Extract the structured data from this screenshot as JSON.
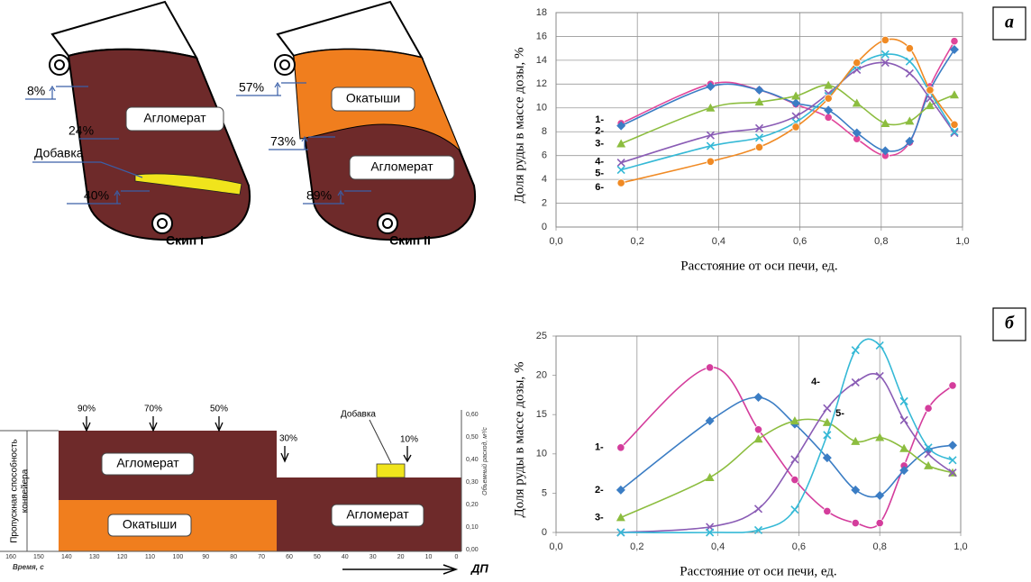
{
  "diagrams": {
    "skip_1": {
      "title": "Скип I",
      "levels": [
        "8%",
        "24%",
        "40%"
      ],
      "layer": "Агломерат",
      "additive": "Добавка"
    },
    "skip_2": {
      "title": "Скип II",
      "levels": [
        "57%",
        "73%",
        "89%"
      ],
      "layers": [
        "Окатыши",
        "Агломерат"
      ]
    },
    "conveyor": {
      "y_label_lines": [
        "Пропускная способность",
        "конвейера"
      ],
      "x_label": "Время, с",
      "y2_label": "Объемный расход, м³/с",
      "x_ticks": [
        "160",
        "150",
        "140",
        "130",
        "120",
        "110",
        "100",
        "90",
        "80",
        "70",
        "60",
        "50",
        "40",
        "30",
        "20",
        "10",
        "0"
      ],
      "y2_ticks": [
        "0,00",
        "0,10",
        "0,20",
        "0,30",
        "0,40",
        "0,50",
        "0,60"
      ],
      "markers": [
        "90%",
        "70%",
        "50%",
        "30%"
      ],
      "additive": "Добавка",
      "additive_share": "10%",
      "layers": [
        "Агломерат",
        "Окатыши",
        "Агломерат"
      ],
      "direction": "ДП"
    }
  },
  "chart_data": [
    {
      "type": "line",
      "panel": "а",
      "x_label": "Расстояние от оси печи, ед.",
      "y_label": "Доля руды в массе дозы, %",
      "xlim": [
        0,
        1
      ],
      "ylim": [
        0,
        18
      ],
      "grid": "both",
      "xticks": [
        {
          "value": 0,
          "label": "0,0"
        },
        {
          "value": 0.2,
          "label": "0,2"
        },
        {
          "value": 0.4,
          "label": "0,4"
        },
        {
          "value": 0.6,
          "label": "0,6"
        },
        {
          "value": 0.8,
          "label": "0,8"
        },
        {
          "value": 1,
          "label": "1,0"
        }
      ],
      "yticks": [
        0,
        2,
        4,
        6,
        8,
        10,
        12,
        14,
        16,
        18
      ],
      "x": [
        0.16,
        0.38,
        0.5,
        0.59,
        0.67,
        0.74,
        0.81,
        0.87,
        0.92,
        0.98
      ],
      "series": [
        {
          "name": "1-",
          "color": "#e0459a",
          "marker": "circle",
          "values": [
            8.7,
            12.0,
            11.5,
            10.3,
            9.2,
            7.4,
            6.0,
            7.1,
            11.8,
            15.6
          ]
        },
        {
          "name": "2-",
          "color": "#3b7dc4",
          "marker": "diamond",
          "values": [
            8.5,
            11.8,
            11.5,
            10.4,
            9.8,
            7.9,
            6.4,
            7.2,
            11.5,
            14.9
          ]
        },
        {
          "name": "3-",
          "color": "#8cbd3f",
          "marker": "triangle",
          "values": [
            7.0,
            10.0,
            10.5,
            11.0,
            11.9,
            10.4,
            8.7,
            8.9,
            10.2,
            11.1
          ]
        },
        {
          "name": "4-",
          "color": "#8a5cb5",
          "marker": "x",
          "values": [
            5.4,
            7.7,
            8.3,
            9.3,
            11.2,
            13.2,
            13.8,
            12.9,
            10.8,
            7.9
          ]
        },
        {
          "name": "5-",
          "color": "#35b9d6",
          "marker": "x",
          "values": [
            4.8,
            6.8,
            7.5,
            8.8,
            11.0,
            13.5,
            14.5,
            13.9,
            11.3,
            8.0
          ]
        },
        {
          "name": "6-",
          "color": "#f08a24",
          "marker": "circle",
          "values": [
            3.7,
            5.5,
            6.7,
            8.4,
            10.8,
            13.8,
            15.7,
            15.0,
            11.5,
            8.6
          ]
        }
      ]
    },
    {
      "type": "line",
      "panel": "б",
      "x_label": "Расстояние от оси печи, ед.",
      "y_label": "Доля руды в массе дозы, %",
      "xlim": [
        0,
        1
      ],
      "ylim": [
        0,
        25
      ],
      "grid": "x",
      "xticks": [
        {
          "value": 0,
          "label": "0,0"
        },
        {
          "value": 0.2,
          "label": "0,2"
        },
        {
          "value": 0.4,
          "label": "0,4"
        },
        {
          "value": 0.6,
          "label": "0,6"
        },
        {
          "value": 0.8,
          "label": "0,8"
        },
        {
          "value": 1,
          "label": "1,0"
        }
      ],
      "yticks": [
        0,
        5,
        10,
        15,
        20,
        25
      ],
      "x": [
        0.16,
        0.38,
        0.5,
        0.59,
        0.67,
        0.74,
        0.8,
        0.86,
        0.92,
        0.98
      ],
      "series": [
        {
          "name": "1-",
          "color": "#d43d9c",
          "marker": "circle",
          "values": [
            10.8,
            21.0,
            13.1,
            6.7,
            2.7,
            1.2,
            1.2,
            8.5,
            15.8,
            18.7
          ]
        },
        {
          "name": "2-",
          "color": "#3b7dc4",
          "marker": "diamond",
          "values": [
            5.4,
            14.2,
            17.2,
            13.8,
            9.5,
            5.4,
            4.7,
            7.9,
            10.5,
            11.1
          ]
        },
        {
          "name": "3-",
          "color": "#8cbd3f",
          "marker": "triangle",
          "values": [
            1.9,
            7.0,
            11.9,
            14.2,
            14.0,
            11.6,
            12.1,
            10.7,
            8.5,
            7.6
          ]
        },
        {
          "name": "4-",
          "color": "#8a5cb5",
          "marker": "x",
          "values": [
            0,
            0.7,
            3.0,
            9.3,
            15.8,
            19.1,
            19.9,
            14.3,
            10.0,
            7.6
          ]
        },
        {
          "name": "5-",
          "color": "#35b9d6",
          "marker": "x",
          "values": [
            0,
            0,
            0.3,
            2.9,
            12.4,
            23.2,
            23.8,
            16.7,
            10.8,
            9.2
          ]
        }
      ]
    }
  ]
}
